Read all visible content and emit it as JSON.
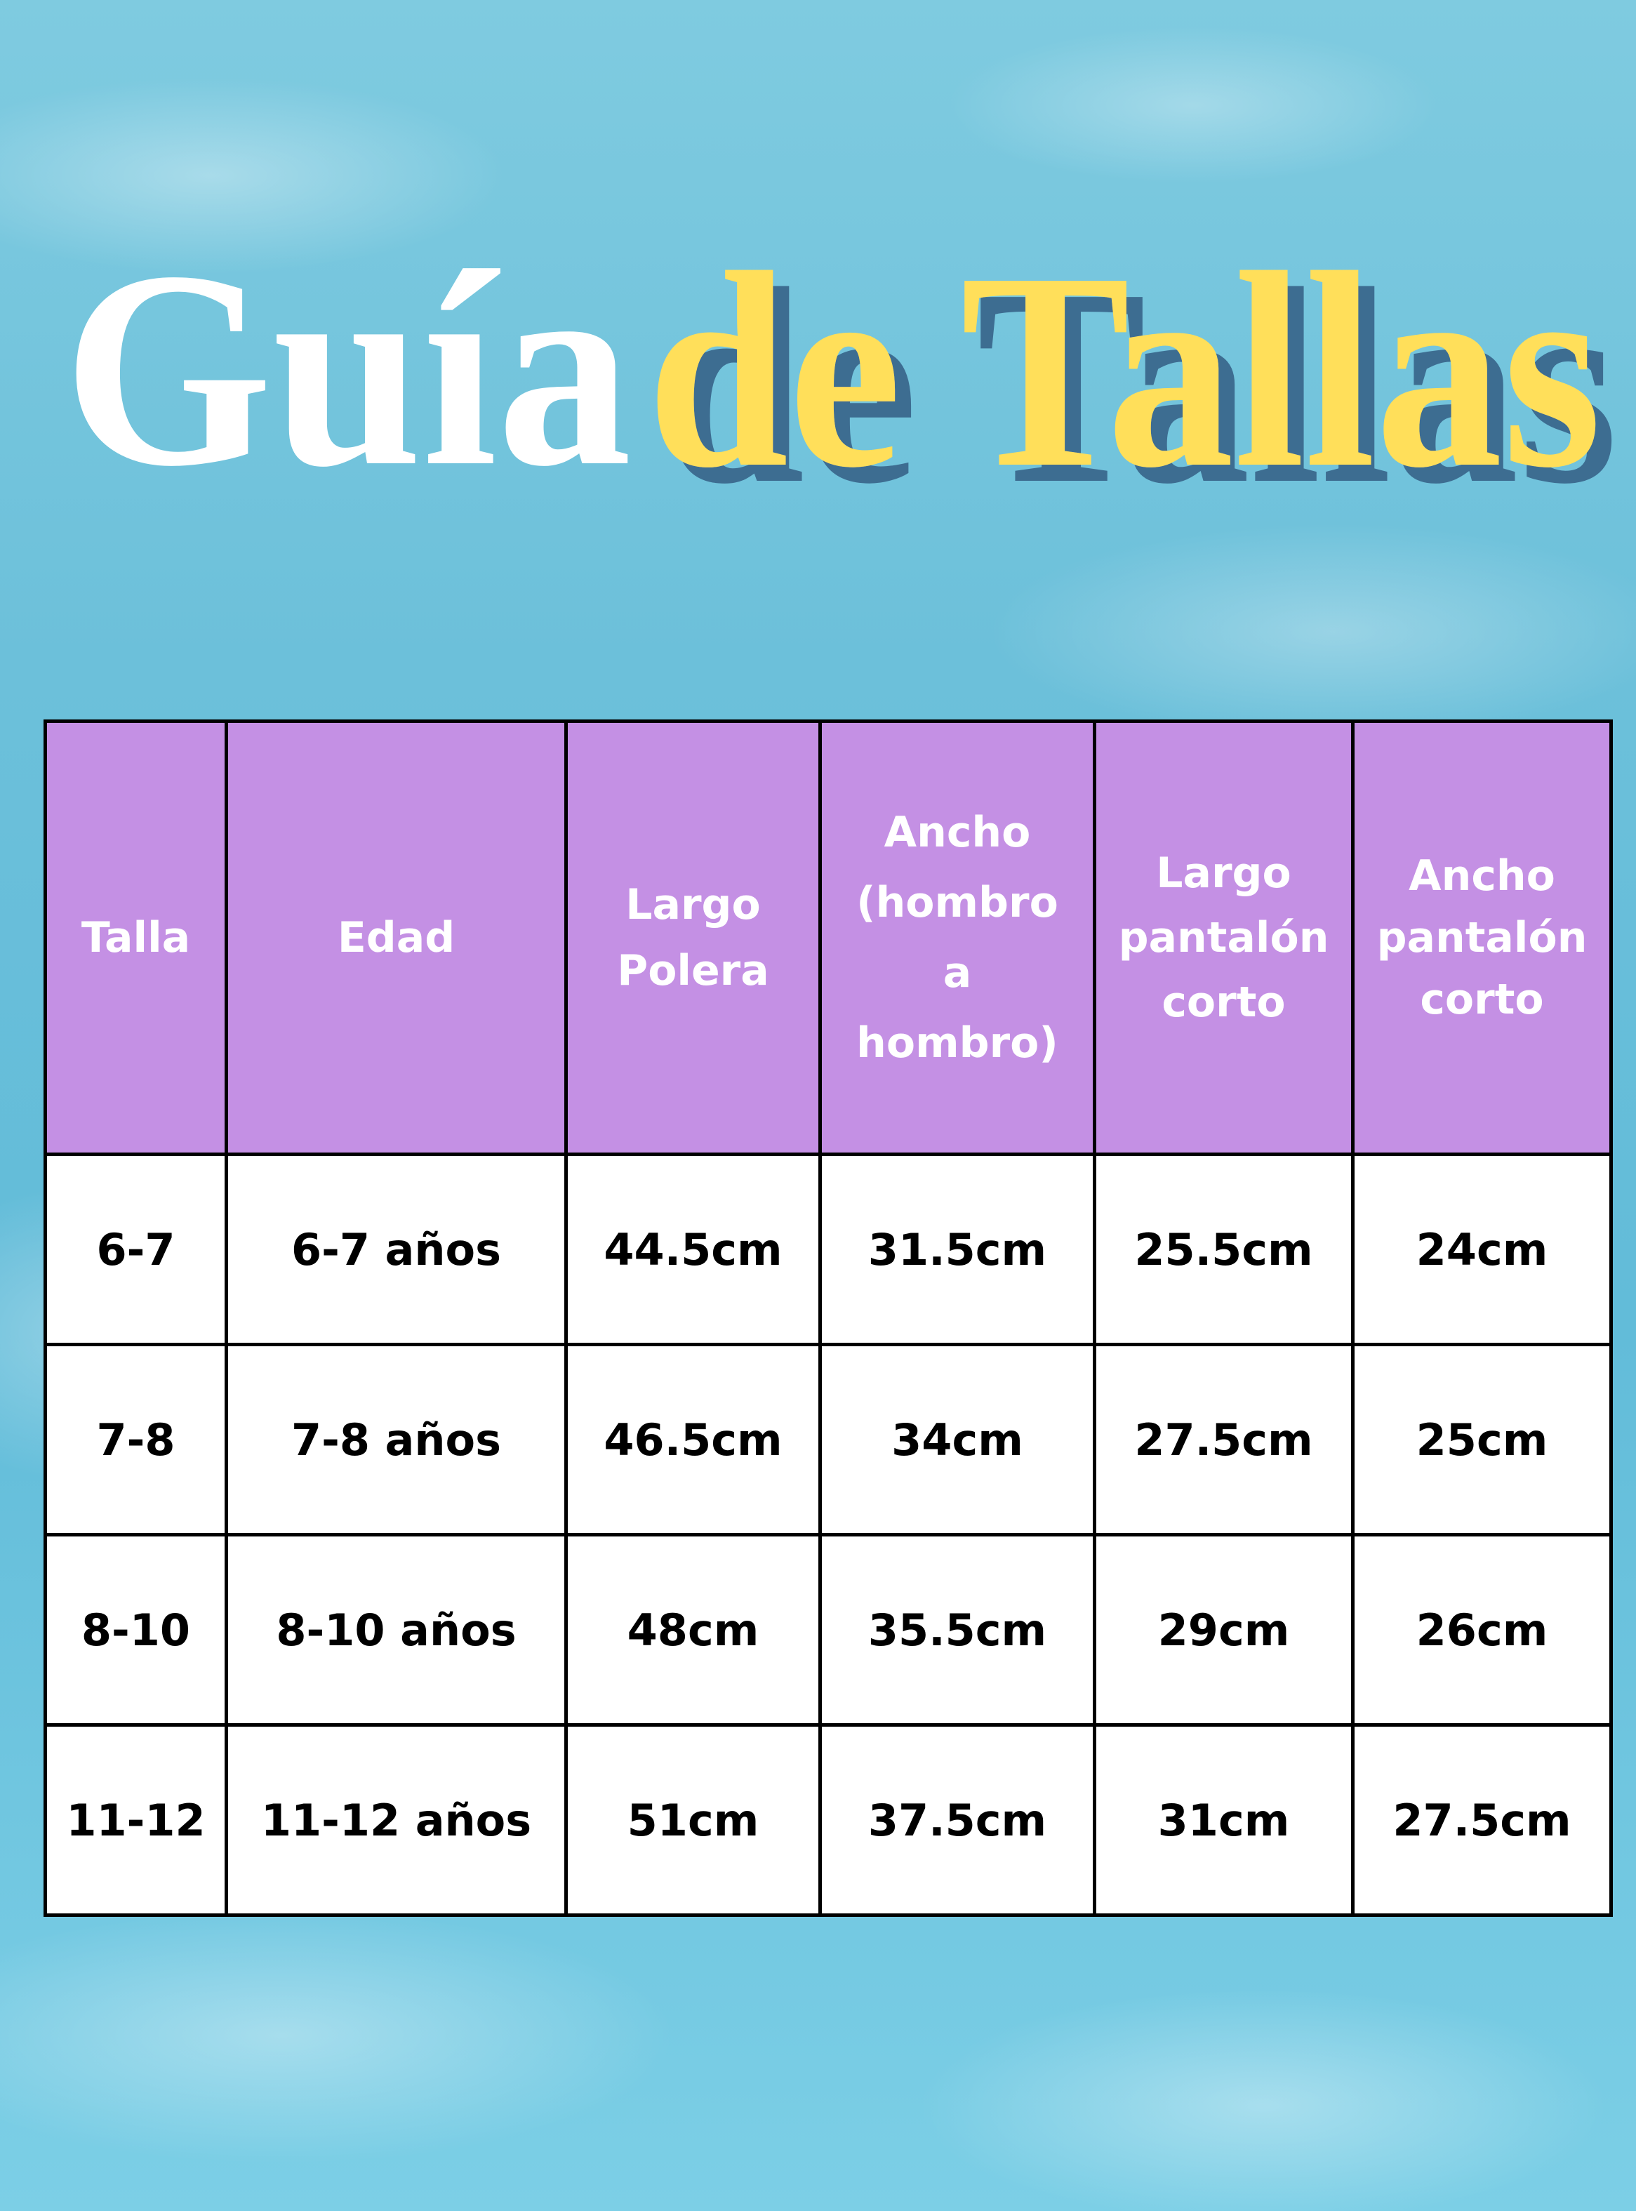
{
  "title": {
    "part1": "Guía",
    "part2": "de Tallas"
  },
  "colors": {
    "header_bg": "#c490e4",
    "title_white": "#ffffff",
    "title_yellow": "#ffdf5a",
    "title_shadow": "#3e6d91",
    "water": "#6cc0da"
  },
  "table": {
    "headers": [
      "Talla",
      "Edad",
      "Largo Polera",
      "Ancho (hombro a hombro)",
      "Largo pantalón corto",
      "Ancho pantalón corto"
    ],
    "rows": [
      [
        "6-7",
        "6-7 años",
        "44.5cm",
        "31.5cm",
        "25.5cm",
        "24cm"
      ],
      [
        "7-8",
        "7-8 años",
        "46.5cm",
        "34cm",
        "27.5cm",
        "25cm"
      ],
      [
        "8-10",
        "8-10 años",
        "48cm",
        "35.5cm",
        "29cm",
        "26cm"
      ],
      [
        "11-12",
        "11-12 años",
        "51cm",
        "37.5cm",
        "31cm",
        "27.5cm"
      ]
    ]
  }
}
